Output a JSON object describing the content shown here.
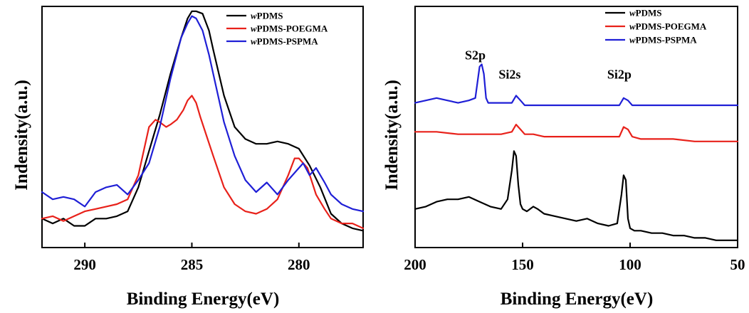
{
  "chart_data": [
    {
      "type": "line",
      "xlabel": "Binding Energy(eV)",
      "ylabel": "Indensity(a.u.)",
      "xlim": [
        292,
        277
      ],
      "x_reversed": true,
      "ylim": [
        0,
        100
      ],
      "y_ticks_shown": false,
      "x_ticks": [
        290,
        285,
        280
      ],
      "x_tick_labels": [
        "290",
        "285",
        "280"
      ],
      "legend_position": "top-right",
      "series": [
        {
          "name": "wPDMS",
          "legend_prefix": "w",
          "legend_rest": "PDMS",
          "color": "#000000",
          "x": [
            292,
            291.5,
            291,
            290.5,
            290,
            289.5,
            289,
            288.5,
            288,
            287.5,
            287,
            286.5,
            286,
            285.5,
            285.2,
            285,
            284.8,
            284.5,
            284.2,
            284,
            283.5,
            283,
            282.5,
            282,
            281.5,
            281,
            280.5,
            280,
            279.5,
            279,
            278.5,
            278,
            277.5,
            277
          ],
          "y": [
            12,
            10,
            12,
            9,
            9,
            12,
            12,
            13,
            15,
            25,
            40,
            55,
            72,
            87,
            95,
            98,
            98,
            97,
            90,
            82,
            63,
            50,
            45,
            43,
            43,
            44,
            43,
            41,
            34,
            25,
            14,
            10,
            8,
            7
          ]
        },
        {
          "name": "wPDMS-POEGMA",
          "legend_prefix": "w",
          "legend_rest": "PDMS-POEGMA",
          "color": "#e8211a",
          "x": [
            292,
            291.5,
            291,
            290.5,
            290,
            289.5,
            289,
            288.5,
            288,
            287.5,
            287,
            286.7,
            286.5,
            286.2,
            286,
            285.7,
            285.4,
            285.2,
            285,
            284.8,
            284.6,
            284.3,
            284,
            283.5,
            283,
            282.5,
            282,
            281.5,
            281,
            280.5,
            280.2,
            280,
            279.6,
            279.2,
            278.8,
            278.5,
            278,
            277.5,
            277
          ],
          "y": [
            12,
            13,
            11,
            13,
            15,
            16,
            17,
            18,
            20,
            30,
            50,
            53,
            52,
            50,
            51,
            53,
            57,
            61,
            63,
            60,
            54,
            46,
            38,
            25,
            18,
            15,
            14,
            16,
            20,
            30,
            37,
            37,
            33,
            22,
            16,
            12,
            10,
            10,
            8
          ]
        },
        {
          "name": "wPDMS-PSPMA",
          "legend_prefix": "w",
          "legend_rest": "PDMS-PSPMA",
          "color": "#1f1fd6",
          "x": [
            292,
            291.5,
            291,
            290.5,
            290,
            289.5,
            289,
            288.5,
            288,
            287.5,
            287,
            286.5,
            286,
            285.5,
            285.2,
            285,
            284.8,
            284.5,
            284.2,
            284,
            283.5,
            283,
            282.5,
            282,
            281.5,
            281,
            280.5,
            280,
            279.8,
            279.5,
            279.2,
            278.8,
            278.5,
            278,
            277.5,
            277
          ],
          "y": [
            23,
            20,
            21,
            20,
            17,
            23,
            25,
            26,
            22,
            28,
            35,
            50,
            70,
            87,
            93,
            96,
            95,
            90,
            80,
            72,
            52,
            38,
            28,
            23,
            27,
            22,
            28,
            33,
            35,
            30,
            33,
            27,
            22,
            18,
            16,
            15
          ]
        }
      ]
    },
    {
      "type": "line",
      "xlabel": "Binding Energy(eV)",
      "ylabel": "Indensity(a.u.)",
      "xlim": [
        200,
        50
      ],
      "x_reversed": true,
      "ylim": [
        0,
        100
      ],
      "y_ticks_shown": false,
      "x_ticks": [
        200,
        150,
        100,
        50
      ],
      "x_tick_labels": [
        "200",
        "150",
        "100",
        "50"
      ],
      "legend_position": "top-right",
      "annotations": [
        {
          "text": "S2p",
          "x": 172,
          "y": 78
        },
        {
          "text": "Si2s",
          "x": 156,
          "y": 70
        },
        {
          "text": "Si2p",
          "x": 105,
          "y": 70
        }
      ],
      "series": [
        {
          "name": "wPDMS",
          "legend_prefix": "w",
          "legend_rest": "PDMS",
          "color": "#000000",
          "x": [
            200,
            195,
            190,
            185,
            180,
            175,
            170,
            165,
            160,
            157,
            155,
            154,
            153,
            152,
            151,
            150,
            148,
            145,
            143,
            140,
            135,
            130,
            125,
            120,
            115,
            110,
            106,
            104,
            103,
            102,
            101,
            100,
            98,
            95,
            90,
            85,
            80,
            75,
            70,
            65,
            60,
            55,
            50
          ],
          "y": [
            16,
            17,
            19,
            20,
            20,
            21,
            19,
            17,
            16,
            20,
            32,
            40,
            38,
            26,
            18,
            16,
            15,
            17,
            16,
            14,
            13,
            12,
            11,
            12,
            10,
            9,
            10,
            22,
            30,
            28,
            12,
            8,
            7,
            7,
            6,
            6,
            5,
            5,
            4,
            4,
            3,
            3,
            3
          ]
        },
        {
          "name": "wPDMS-POEGMA",
          "legend_prefix": "w",
          "legend_rest": "PDMS-POEGMA",
          "color": "#e8211a",
          "x": [
            200,
            190,
            180,
            170,
            160,
            155,
            153,
            151,
            149,
            145,
            140,
            130,
            120,
            110,
            105,
            103,
            101,
            99,
            95,
            90,
            80,
            70,
            60,
            50
          ],
          "y": [
            48,
            48,
            47,
            47,
            47,
            48,
            51,
            49,
            47,
            47,
            46,
            46,
            46,
            46,
            46,
            50,
            49,
            46,
            45,
            45,
            45,
            44,
            44,
            44
          ]
        },
        {
          "name": "wPDMS-PSPMA",
          "legend_prefix": "w",
          "legend_rest": "PDMS-PSPMA",
          "color": "#1f1fd6",
          "x": [
            200,
            195,
            190,
            185,
            180,
            175,
            172,
            170,
            169,
            168,
            167,
            166,
            163,
            160,
            155,
            153,
            151,
            149,
            145,
            140,
            130,
            120,
            110,
            105,
            103,
            101,
            99,
            95,
            90,
            80,
            70,
            60,
            50
          ],
          "y": [
            60,
            61,
            62,
            61,
            60,
            61,
            62,
            75,
            76,
            72,
            62,
            60,
            60,
            60,
            60,
            63,
            61,
            59,
            59,
            59,
            59,
            59,
            59,
            59,
            62,
            61,
            59,
            59,
            59,
            59,
            59,
            59,
            59
          ]
        }
      ]
    }
  ]
}
